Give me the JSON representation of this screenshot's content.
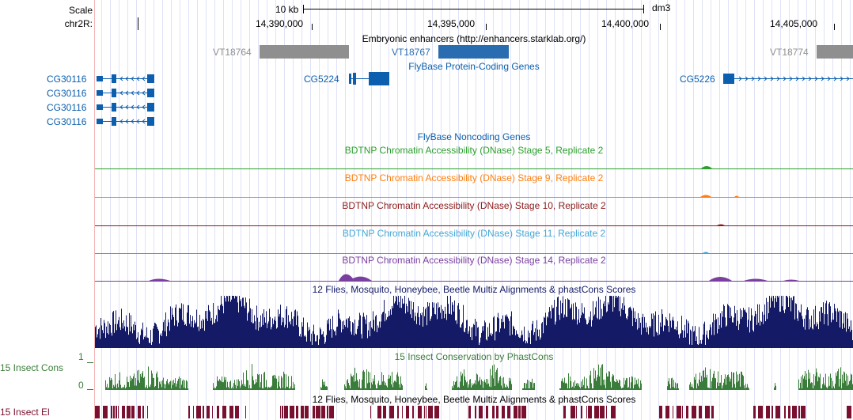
{
  "ruler": {
    "scale_label": "Scale",
    "chrom_label": "chr2R:",
    "scale_value": "10 kb",
    "assembly": "dm3",
    "ticks": [
      "14,390,000",
      "14,395,000",
      "14,400,000",
      "14,405,000"
    ]
  },
  "tracks": {
    "enhancers": {
      "title": "Embryonic enhancers (http://enhancers.starklab.org/)",
      "items": [
        "VT18764",
        "VT18767",
        "VT18774"
      ]
    },
    "flybase_coding": {
      "title": "FlyBase Protein-Coding Genes",
      "genes": [
        "CG30116",
        "CG30116",
        "CG30116",
        "CG30116",
        "CG5224",
        "CG5226"
      ]
    },
    "flybase_noncoding": {
      "title": "FlyBase Noncoding Genes"
    },
    "dnase": [
      {
        "title": "BDTNP Chromatin Accessibility (DNase) Stage 5, Replicate 2",
        "color": "#2ca02c"
      },
      {
        "title": "BDTNP Chromatin Accessibility (DNase) Stage 9, Replicate 2",
        "color": "#ff7f0e"
      },
      {
        "title": "BDTNP Chromatin Accessibility (DNase) Stage 10, Replicate 2",
        "color": "#8b1a1a"
      },
      {
        "title": "BDTNP Chromatin Accessibility (DNase) Stage 11, Replicate 2",
        "color": "#45a7d6"
      },
      {
        "title": "BDTNP Chromatin Accessibility (DNase) Stage 14, Replicate 2",
        "color": "#7b3fa0"
      }
    ],
    "multiz": {
      "title": "12 Flies, Mosquito, Honeybee, Beetle Multiz Alignments & phastCons Scores",
      "color": "#141a66"
    },
    "phastcons": {
      "title": "15 Insect Conservation by PhastCons",
      "side_label": "15 Insect Cons",
      "max_label": "1",
      "min_label": "0",
      "color": "#3a7d3a"
    },
    "multiz2": {
      "title": "12 Flies, Mosquito, Honeybee, Beetle Multiz Alignments & phastCons Scores"
    },
    "elements": {
      "side_label": "15 Insect El",
      "color": "#7a1030"
    }
  }
}
